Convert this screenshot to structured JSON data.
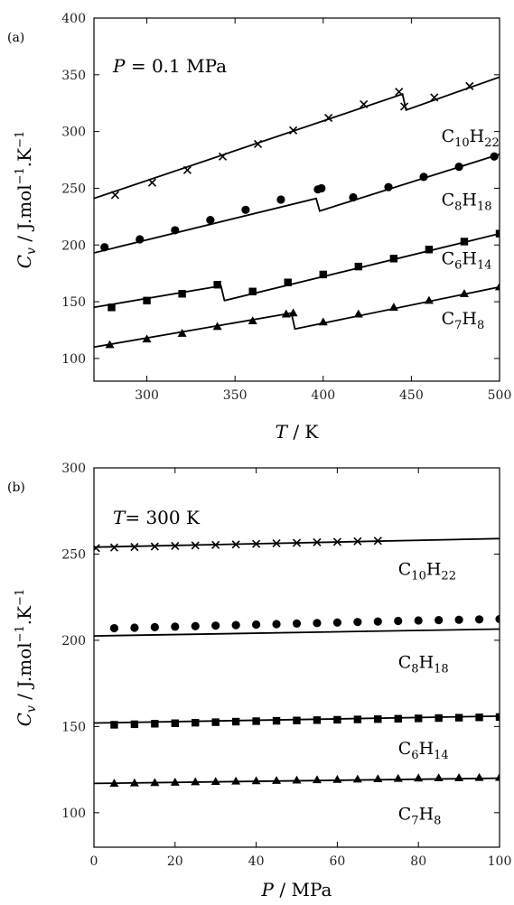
{
  "chart_data": [
    {
      "panel_label": "(a)",
      "type": "line",
      "annotation_var": "P",
      "annotation_rest": " = 0.1 MPa",
      "xlabel_var": "T",
      "xlabel_rest": " / K",
      "ylabel_var": "C",
      "ylabel_sub": "v",
      "ylabel_rest": " / J.mol",
      "ylabel_exp": "−1",
      "ylabel_tail": ".K",
      "ylabel_exp2": "−1",
      "xlim": [
        270,
        500
      ],
      "ylim": [
        80,
        400
      ],
      "xticks": [
        "300",
        "350",
        "400",
        "450",
        "500"
      ],
      "yticks": [
        "100",
        "150",
        "200",
        "250",
        "300",
        "350",
        "400"
      ],
      "xtick_values": [
        300,
        350,
        400,
        450,
        500
      ],
      "ytick_values": [
        100,
        150,
        200,
        250,
        300,
        350,
        400
      ],
      "series": [
        {
          "label_main": "C",
          "label_sub1": "10",
          "label_h": "H",
          "label_sub2": "22",
          "label_pos": [
            467,
            291
          ],
          "marker": "x",
          "line": [
            [
              270,
              241
            ],
            [
              445,
              333
            ],
            [
              447,
              319
            ],
            [
              500,
              348
            ]
          ],
          "points": [
            [
              282,
              244
            ],
            [
              303,
              255
            ],
            [
              323,
              266
            ],
            [
              343,
              278
            ],
            [
              363,
              289
            ],
            [
              383,
              301
            ],
            [
              403,
              312
            ],
            [
              423,
              324
            ],
            [
              443,
              335
            ],
            [
              446,
              322
            ],
            [
              463,
              330
            ],
            [
              483,
              340
            ]
          ]
        },
        {
          "label_main": "C",
          "label_sub1": "8",
          "label_h": "H",
          "label_sub2": "18",
          "label_pos": [
            467,
            235
          ],
          "marker": "circle",
          "line": [
            [
              270,
              193
            ],
            [
              396,
              241
            ],
            [
              398,
              230
            ],
            [
              500,
              280
            ]
          ],
          "points": [
            [
              276,
              198
            ],
            [
              296,
              205
            ],
            [
              316,
              213
            ],
            [
              336,
              222
            ],
            [
              356,
              231
            ],
            [
              376,
              240
            ],
            [
              397,
              249
            ],
            [
              399,
              250
            ],
            [
              417,
              242
            ],
            [
              437,
              251
            ],
            [
              457,
              260
            ],
            [
              477,
              269
            ],
            [
              497,
              278
            ]
          ]
        },
        {
          "label_main": "C",
          "label_sub1": "6",
          "label_h": "H",
          "label_sub2": "14",
          "label_pos": [
            467,
            183
          ],
          "marker": "square",
          "line": [
            [
              270,
              145
            ],
            [
              342,
              164
            ],
            [
              344,
              151
            ],
            [
              500,
              210
            ]
          ],
          "points": [
            [
              280,
              145
            ],
            [
              300,
              151
            ],
            [
              320,
              157
            ],
            [
              340,
              165
            ],
            [
              360,
              159
            ],
            [
              380,
              167
            ],
            [
              400,
              174
            ],
            [
              420,
              181
            ],
            [
              440,
              188
            ],
            [
              460,
              196
            ],
            [
              480,
              203
            ],
            [
              500,
              210
            ]
          ]
        },
        {
          "label_main": "C",
          "label_sub1": "7",
          "label_h": "H",
          "label_sub2": "8",
          "label_pos": [
            467,
            130
          ],
          "marker": "triangle",
          "line": [
            [
              270,
              110
            ],
            [
              382,
              140
            ],
            [
              384,
              126
            ],
            [
              500,
              163
            ]
          ],
          "points": [
            [
              279,
              112
            ],
            [
              300,
              117
            ],
            [
              320,
              122
            ],
            [
              340,
              128
            ],
            [
              360,
              133
            ],
            [
              379,
              139
            ],
            [
              383,
              140
            ],
            [
              400,
              132
            ],
            [
              420,
              139
            ],
            [
              440,
              145
            ],
            [
              460,
              151
            ],
            [
              480,
              157
            ],
            [
              500,
              163
            ]
          ]
        }
      ]
    },
    {
      "panel_label": "(b)",
      "type": "line",
      "annotation_var": "T",
      "annotation_rest": "= 300 K",
      "xlabel_var": "P",
      "xlabel_rest": " / MPa",
      "ylabel_var": "C",
      "ylabel_sub": "v",
      "ylabel_rest": " / J.mol",
      "ylabel_exp": "−1",
      "ylabel_tail": ".K",
      "ylabel_exp2": "−1",
      "xlim": [
        0,
        100
      ],
      "ylim": [
        80,
        300
      ],
      "xticks": [
        "0",
        "20",
        "40",
        "60",
        "80",
        "100"
      ],
      "yticks": [
        "100",
        "150",
        "200",
        "250",
        "300"
      ],
      "xtick_values": [
        0,
        20,
        40,
        60,
        80,
        100
      ],
      "ytick_values": [
        100,
        150,
        200,
        250,
        300
      ],
      "series": [
        {
          "label_main": "C",
          "label_sub1": "10",
          "label_h": "H",
          "label_sub2": "22",
          "label_pos": [
            75,
            238
          ],
          "marker": "x",
          "line": [
            [
              0,
              254
            ],
            [
              100,
              259
            ]
          ],
          "points": [
            [
              0.5,
              253.5
            ],
            [
              5,
              253.8
            ],
            [
              10,
              254.1
            ],
            [
              15,
              254.4
            ],
            [
              20,
              254.7
            ],
            [
              25,
              255
            ],
            [
              30,
              255.3
            ],
            [
              35,
              255.6
            ],
            [
              40,
              255.9
            ],
            [
              45,
              256.2
            ],
            [
              50,
              256.5
            ],
            [
              55,
              256.8
            ],
            [
              60,
              257.1
            ],
            [
              65,
              257.4
            ],
            [
              70,
              257.7
            ]
          ]
        },
        {
          "label_main": "C",
          "label_sub1": "8",
          "label_h": "H",
          "label_sub2": "18",
          "label_pos": [
            75,
            184
          ],
          "marker": "circle",
          "line": [
            [
              0,
              202.5
            ],
            [
              100,
              206.5
            ]
          ],
          "points": [
            [
              5,
              207
            ],
            [
              10,
              207.3
            ],
            [
              15,
              207.6
            ],
            [
              20,
              207.9
            ],
            [
              25,
              208.2
            ],
            [
              30,
              208.5
            ],
            [
              35,
              208.8
            ],
            [
              40,
              209.1
            ],
            [
              45,
              209.4
            ],
            [
              50,
              209.7
            ],
            [
              55,
              210
            ],
            [
              60,
              210.3
            ],
            [
              65,
              210.6
            ],
            [
              70,
              210.9
            ],
            [
              75,
              211.2
            ],
            [
              80,
              211.5
            ],
            [
              85,
              211.7
            ],
            [
              90,
              211.9
            ],
            [
              95,
              212.1
            ],
            [
              100,
              212.3
            ]
          ]
        },
        {
          "label_main": "C",
          "label_sub1": "6",
          "label_h": "H",
          "label_sub2": "14",
          "label_pos": [
            75,
            134
          ],
          "marker": "square",
          "line": [
            [
              0,
              152
            ],
            [
              100,
              156
            ]
          ],
          "points": [
            [
              5,
              151
            ],
            [
              10,
              151.3
            ],
            [
              15,
              151.6
            ],
            [
              20,
              151.9
            ],
            [
              25,
              152.2
            ],
            [
              30,
              152.5
            ],
            [
              35,
              152.8
            ],
            [
              40,
              153.1
            ],
            [
              45,
              153.3
            ],
            [
              50,
              153.5
            ],
            [
              55,
              153.7
            ],
            [
              60,
              153.9
            ],
            [
              65,
              154.1
            ],
            [
              70,
              154.3
            ],
            [
              75,
              154.5
            ],
            [
              80,
              154.7
            ],
            [
              85,
              154.9
            ],
            [
              90,
              155.1
            ],
            [
              95,
              155.3
            ],
            [
              100,
              155.5
            ]
          ]
        },
        {
          "label_main": "C",
          "label_sub1": "7",
          "label_h": "H",
          "label_sub2": "8",
          "label_pos": [
            75,
            96
          ],
          "marker": "triangle",
          "line": [
            [
              0,
              117
            ],
            [
              100,
              120
            ]
          ],
          "points": [
            [
              5,
              117
            ],
            [
              10,
              117.2
            ],
            [
              15,
              117.4
            ],
            [
              20,
              117.6
            ],
            [
              25,
              117.8
            ],
            [
              30,
              118
            ],
            [
              35,
              118.2
            ],
            [
              40,
              118.4
            ],
            [
              45,
              118.6
            ],
            [
              50,
              118.8
            ],
            [
              55,
              119
            ],
            [
              60,
              119.2
            ],
            [
              65,
              119.4
            ],
            [
              70,
              119.6
            ],
            [
              75,
              119.8
            ],
            [
              80,
              120
            ],
            [
              85,
              120.1
            ],
            [
              90,
              120.2
            ],
            [
              95,
              120.3
            ],
            [
              100,
              120.4
            ]
          ]
        }
      ]
    }
  ]
}
